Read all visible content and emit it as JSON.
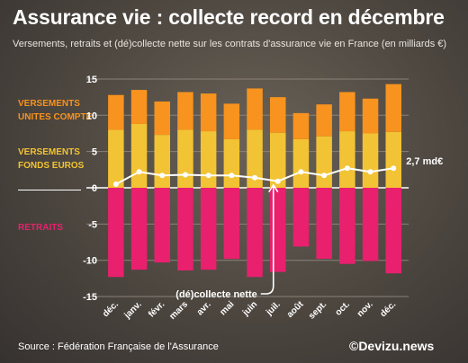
{
  "header": {
    "title": "Assurance vie : collecte record en décembre",
    "subtitle": "Versements, retraits et (dé)collecte nette sur les contrats d'assurance vie en France (en milliards €)"
  },
  "legend": {
    "unites_compte": [
      "VERSEMENTS",
      "UNITES COMPTE"
    ],
    "fonds_euros": [
      "VERSEMENTS",
      "FONDS EUROS"
    ],
    "retraits": "RETRAITS"
  },
  "annotations": {
    "collecte_nette": "(dé)collecte nette",
    "last_value": "2,7 md€"
  },
  "footer": {
    "source": "Source : Fédération Française de l'Assurance",
    "brand": "©Devizu.news"
  },
  "colors": {
    "unites_compte": "#f7931e",
    "fonds_euros": "#f2c334",
    "retraits": "#e8206e",
    "line": "#ffffff"
  },
  "chart_data": {
    "type": "bar",
    "categories": [
      "déc.",
      "janv.",
      "févr.",
      "mars",
      "avr.",
      "mai",
      "juin",
      "juil.",
      "août",
      "sept.",
      "oct.",
      "nov.",
      "déc."
    ],
    "yticks": [
      15,
      10,
      5,
      0,
      -5,
      -10,
      -15
    ],
    "ylim": [
      -15,
      15
    ],
    "series": [
      {
        "name": "VERSEMENTS FONDS EUROS",
        "values": [
          8.0,
          8.8,
          7.3,
          8.0,
          7.8,
          6.7,
          8.0,
          7.6,
          6.7,
          7.1,
          7.8,
          7.5,
          7.7
        ]
      },
      {
        "name": "VERSEMENTS UNITES COMPTE",
        "values": [
          4.8,
          4.7,
          4.6,
          5.2,
          5.2,
          4.9,
          5.7,
          4.9,
          3.6,
          4.4,
          5.4,
          4.8,
          6.6
        ]
      },
      {
        "name": "RETRAITS",
        "values": [
          -12.3,
          -11.3,
          -10.3,
          -11.4,
          -11.3,
          -9.8,
          -12.3,
          -11.6,
          -8.1,
          -9.8,
          -10.5,
          -10.1,
          -11.8
        ]
      },
      {
        "name": "(dé)collecte nette",
        "type": "line",
        "values": [
          0.5,
          2.2,
          1.7,
          1.8,
          1.7,
          1.7,
          1.4,
          0.9,
          2.2,
          1.7,
          2.7,
          2.2,
          2.7
        ]
      }
    ]
  }
}
